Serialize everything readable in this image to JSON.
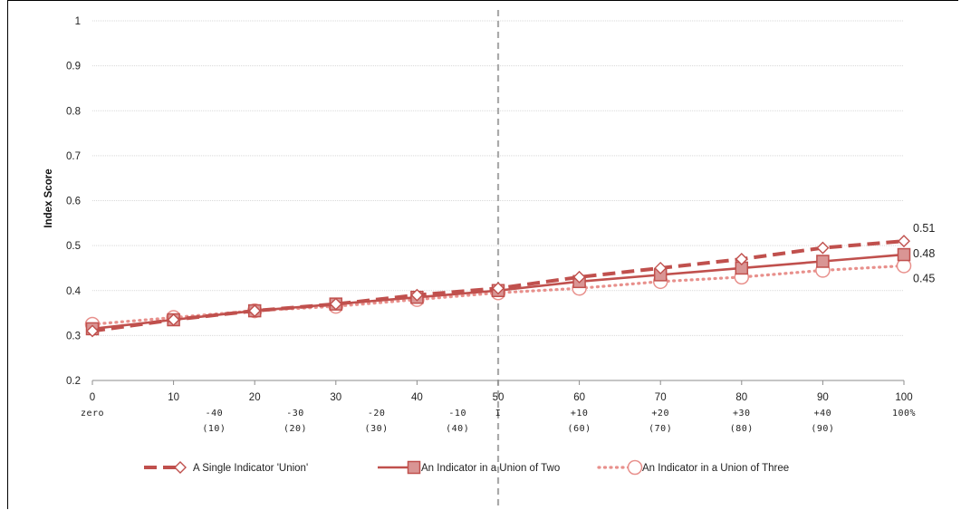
{
  "chart_data": {
    "type": "line",
    "title": "",
    "xlabel": "",
    "ylabel": "Index Score",
    "x": [
      0,
      10,
      20,
      30,
      40,
      50,
      60,
      70,
      80,
      90,
      100
    ],
    "xlim": [
      0,
      100
    ],
    "ylim": [
      0.2,
      1
    ],
    "y_ticks": [
      "0.2",
      "0.3",
      "0.4",
      "0.5",
      "0.6",
      "0.7",
      "0.8",
      "0.9",
      "1"
    ],
    "x_ticks": [
      "0",
      "10",
      "20",
      "30",
      "40",
      "50",
      "60",
      "70",
      "80",
      "90",
      "100"
    ],
    "category_labels": [
      {
        "x": 0,
        "lines": [
          "zero"
        ]
      },
      {
        "x": 15,
        "lines": [
          "-40",
          "(10)"
        ]
      },
      {
        "x": 25,
        "lines": [
          "-30",
          "(20)"
        ]
      },
      {
        "x": 35,
        "lines": [
          "-20",
          "(30)"
        ]
      },
      {
        "x": 45,
        "lines": [
          "-10",
          "(40)"
        ]
      },
      {
        "x": 50,
        "lines": [
          "I"
        ]
      },
      {
        "x": 60,
        "lines": [
          "+10",
          "(60)"
        ]
      },
      {
        "x": 70,
        "lines": [
          "+20",
          "(70)"
        ]
      },
      {
        "x": 80,
        "lines": [
          "+30",
          "(80)"
        ]
      },
      {
        "x": 90,
        "lines": [
          "+40",
          "(90)"
        ]
      },
      {
        "x": 100,
        "lines": [
          "100%"
        ]
      }
    ],
    "reference_line": {
      "x": 50,
      "style": "dashed",
      "color": "#aaaaaa"
    },
    "grid": true,
    "legend_position": "bottom",
    "series": [
      {
        "name": "A Single Indicator 'Union'",
        "values": [
          0.31,
          0.335,
          0.355,
          0.37,
          0.39,
          0.405,
          0.43,
          0.45,
          0.47,
          0.495,
          0.51
        ],
        "color": "#c0504d",
        "line": "dashed",
        "marker": "diamond",
        "end_label": "0.51"
      },
      {
        "name": "An Indicator in a Union of Two",
        "values": [
          0.315,
          0.335,
          0.355,
          0.37,
          0.385,
          0.4,
          0.42,
          0.435,
          0.45,
          0.465,
          0.48
        ],
        "color": "#c0504d",
        "line": "solid",
        "marker": "square",
        "end_label": "0.48"
      },
      {
        "name": "An Indicator in a Union of Three",
        "values": [
          0.325,
          0.34,
          0.355,
          0.365,
          0.38,
          0.395,
          0.405,
          0.42,
          0.43,
          0.445,
          0.455
        ],
        "color": "#e8908c",
        "line": "dotted",
        "marker": "circle",
        "end_label": "0.45"
      }
    ]
  }
}
